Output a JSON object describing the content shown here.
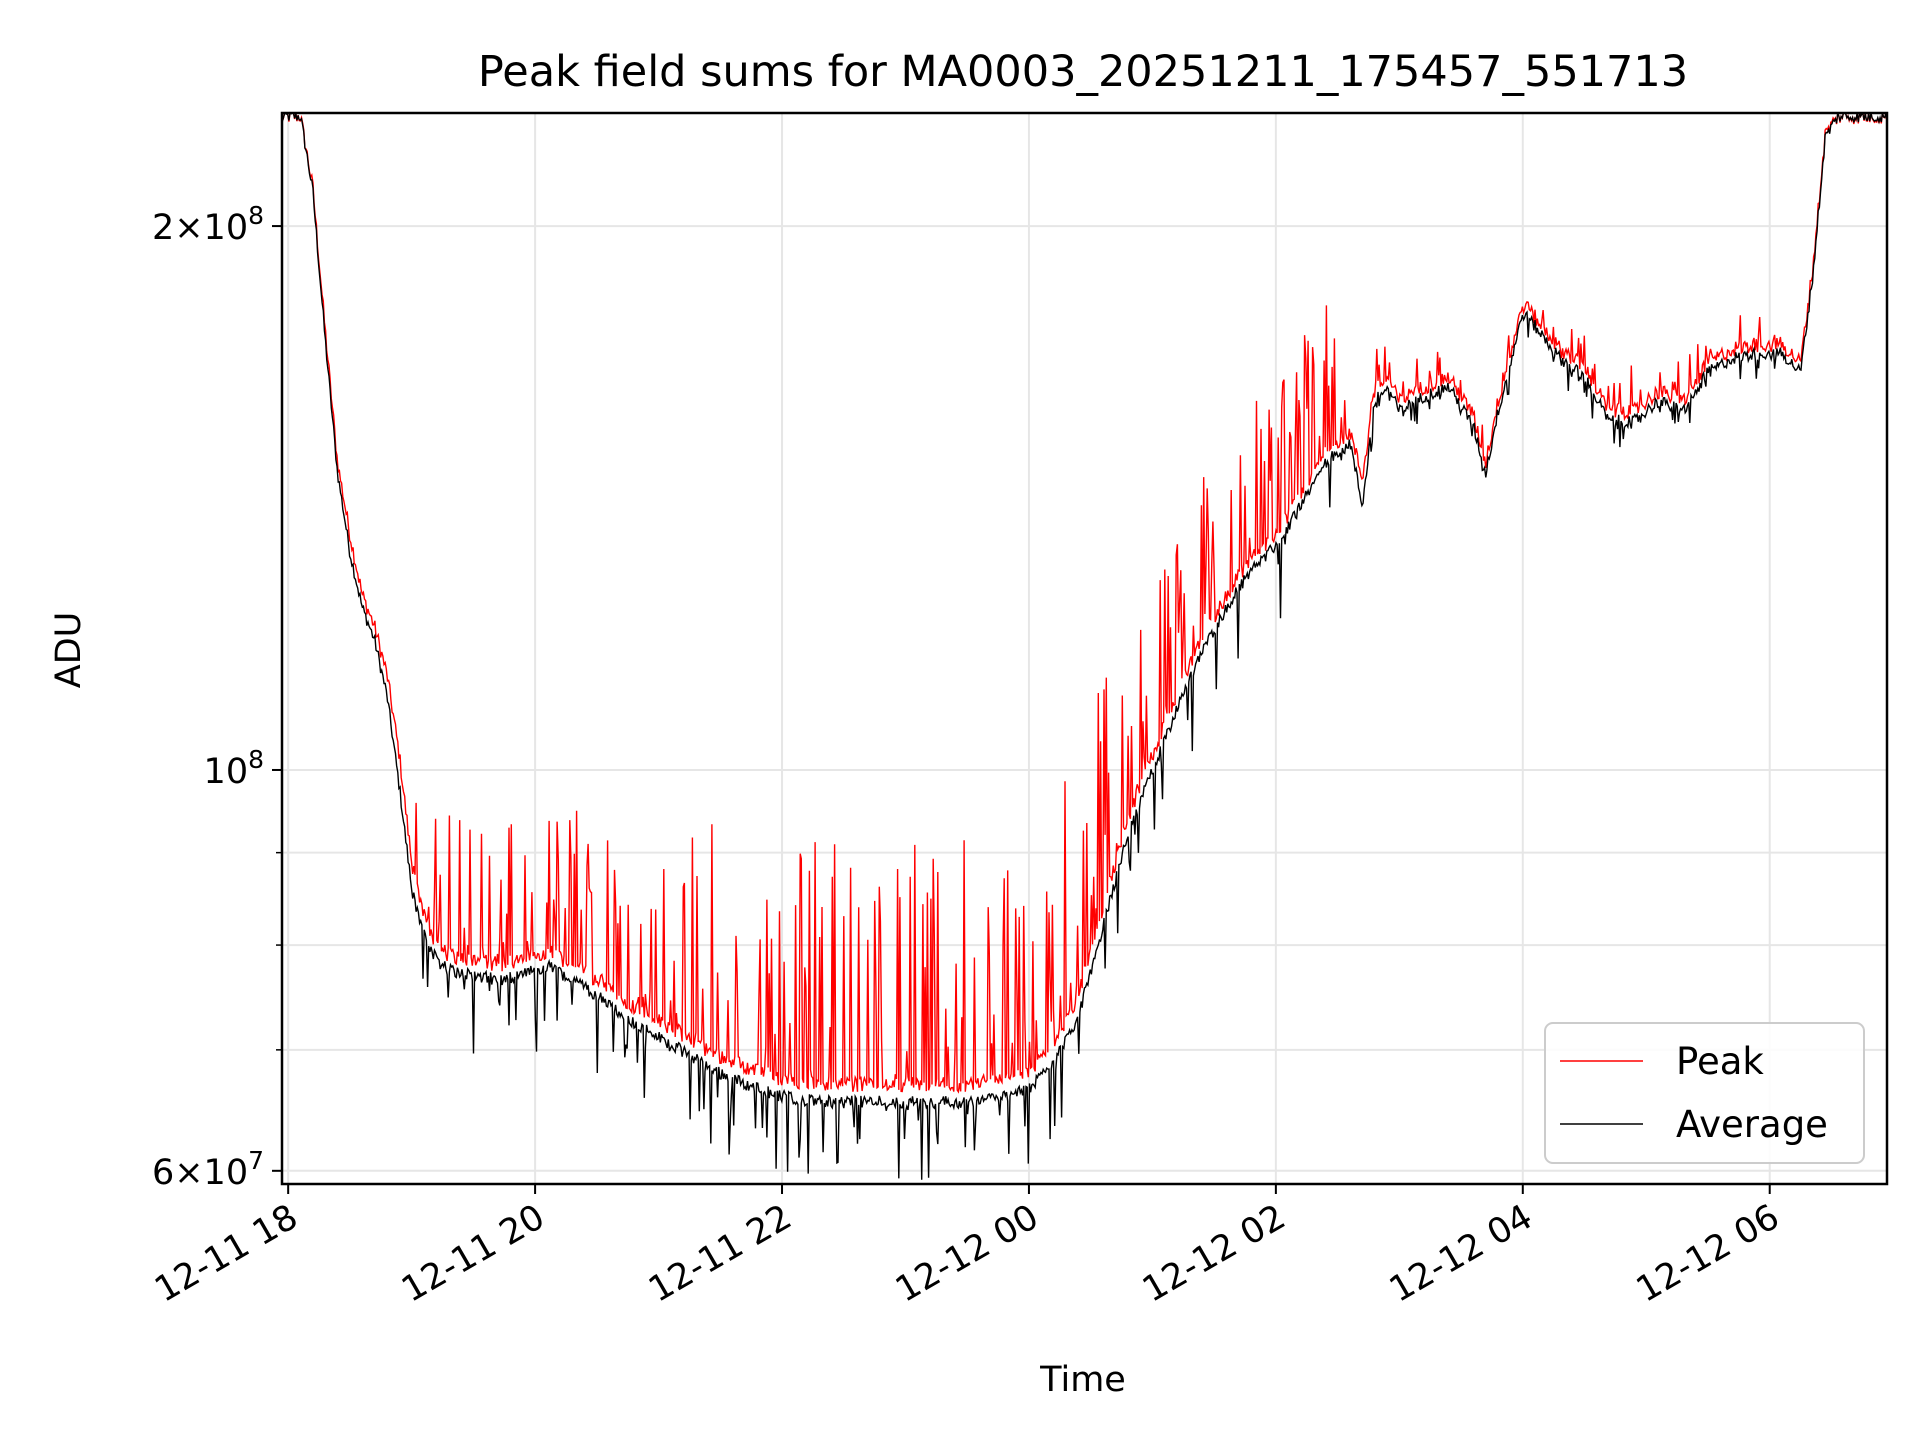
{
  "chart_data": {
    "type": "line",
    "title": "Peak field sums for MA0003_20251211_175457_551713",
    "xlabel": "Time",
    "ylabel": "ADU",
    "yscale": "log",
    "ylim": [
      59000000,
      231000000
    ],
    "xlim_hours": [
      -0.05,
      12.95
    ],
    "x_ticks": [
      {
        "label": "12-11 18",
        "hour": 0
      },
      {
        "label": "12-11 20",
        "hour": 2
      },
      {
        "label": "12-11 22",
        "hour": 4
      },
      {
        "label": "12-12 00",
        "hour": 6
      },
      {
        "label": "12-12 02",
        "hour": 8
      },
      {
        "label": "12-12 04",
        "hour": 10
      },
      {
        "label": "12-12 06",
        "hour": 12
      }
    ],
    "y_major_ticks": [
      {
        "value": 60000000,
        "base": "6",
        "exp": "7"
      },
      {
        "value": 100000000,
        "base": "",
        "exp": "8"
      },
      {
        "value": 200000000,
        "base": "2",
        "exp": "8"
      }
    ],
    "y_minor_ticks": [
      70000000,
      80000000,
      90000000
    ],
    "times_label": "10 ×",
    "grid": true,
    "legend_position": "lower-right",
    "series": [
      {
        "name": "Peak",
        "color": "#ff0000",
        "hours": [
          -0.05,
          0.1,
          0.2,
          0.3,
          0.4,
          0.5,
          0.6,
          0.7,
          0.8,
          0.9,
          1.0,
          1.1,
          1.2,
          1.3,
          1.5,
          1.7,
          1.9,
          2.1,
          2.3,
          2.5,
          2.8,
          3.1,
          3.4,
          3.7,
          4.0,
          4.3,
          4.6,
          4.9,
          5.2,
          5.5,
          5.8,
          6.0,
          6.2,
          6.4,
          6.6,
          6.8,
          7.0,
          7.2,
          7.4,
          7.6,
          7.8,
          8.0,
          8.2,
          8.4,
          8.6,
          8.7,
          8.8,
          8.9,
          9.0,
          9.2,
          9.4,
          9.6,
          9.7,
          9.8,
          9.9,
          10.0,
          10.1,
          10.3,
          10.5,
          10.7,
          10.9,
          11.1,
          11.3,
          11.5,
          11.7,
          11.9,
          12.1,
          12.25,
          12.35,
          12.45,
          12.55,
          12.65,
          12.95
        ],
        "values": [
          230000000,
          230000000,
          210000000,
          175000000,
          148000000,
          135000000,
          125000000,
          120000000,
          113000000,
          102000000,
          89000000,
          83000000,
          80000000,
          79000000,
          78500000,
          78000000,
          78500000,
          79500000,
          78000000,
          76500000,
          74000000,
          72000000,
          70000000,
          68500000,
          67500000,
          67000000,
          67000000,
          67000000,
          67000000,
          67000000,
          67500000,
          68000000,
          70500000,
          75000000,
          84000000,
          94000000,
          102000000,
          110000000,
          118000000,
          125000000,
          131000000,
          135000000,
          142000000,
          150000000,
          154000000,
          145000000,
          162000000,
          165000000,
          160000000,
          163000000,
          165000000,
          157000000,
          148000000,
          160000000,
          170000000,
          181000000,
          178000000,
          171000000,
          167000000,
          158000000,
          158000000,
          162000000,
          160000000,
          168000000,
          171000000,
          172000000,
          172000000,
          168000000,
          190000000,
          225000000,
          230000000,
          230000000,
          230000000
        ]
      },
      {
        "name": "Average",
        "color": "#000000",
        "hours": [
          -0.05,
          0.1,
          0.2,
          0.3,
          0.4,
          0.5,
          0.6,
          0.7,
          0.8,
          0.9,
          1.0,
          1.1,
          1.2,
          1.3,
          1.5,
          1.7,
          1.9,
          2.1,
          2.3,
          2.5,
          2.8,
          3.1,
          3.4,
          3.7,
          4.0,
          4.3,
          4.6,
          4.9,
          5.2,
          5.5,
          5.8,
          6.0,
          6.2,
          6.4,
          6.6,
          6.8,
          7.0,
          7.2,
          7.4,
          7.6,
          7.8,
          8.0,
          8.2,
          8.4,
          8.6,
          8.7,
          8.8,
          8.9,
          9.0,
          9.2,
          9.4,
          9.6,
          9.7,
          9.8,
          9.9,
          10.0,
          10.1,
          10.3,
          10.5,
          10.7,
          10.9,
          11.1,
          11.3,
          11.5,
          11.7,
          11.9,
          12.1,
          12.25,
          12.35,
          12.45,
          12.55,
          12.65,
          12.95
        ],
        "values": [
          230000000,
          230000000,
          209000000,
          173000000,
          146000000,
          132000000,
          123000000,
          118000000,
          110000000,
          98000000,
          86000000,
          81000000,
          78500000,
          77500000,
          77000000,
          76500000,
          77000000,
          78000000,
          76500000,
          75000000,
          72500000,
          70500000,
          68500000,
          67000000,
          66000000,
          65500000,
          65500000,
          65500000,
          65500000,
          65500000,
          66000000,
          66500000,
          69000000,
          73000000,
          82000000,
          92000000,
          100000000,
          108000000,
          116000000,
          123000000,
          129000000,
          133000000,
          140000000,
          148000000,
          152000000,
          140000000,
          160000000,
          163000000,
          158000000,
          161000000,
          163000000,
          155000000,
          146000000,
          158000000,
          168000000,
          179000000,
          176000000,
          169000000,
          165000000,
          156000000,
          156000000,
          160000000,
          158000000,
          166000000,
          169000000,
          170000000,
          170000000,
          166000000,
          188000000,
          224000000,
          230000000,
          230000000,
          230000000
        ]
      }
    ]
  }
}
